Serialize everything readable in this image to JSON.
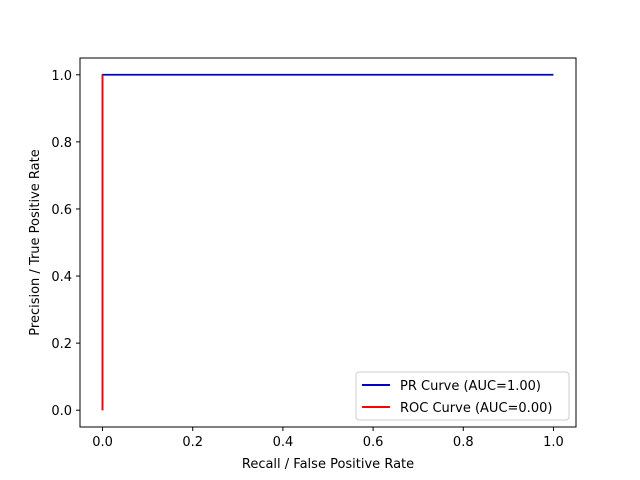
{
  "chart_data": {
    "type": "line",
    "title": "",
    "xlabel": "Recall / False Positive Rate",
    "ylabel": "Precision / True Positive Rate",
    "xlim": [
      -0.05,
      1.05
    ],
    "ylim": [
      -0.05,
      1.05
    ],
    "xticks": [
      0.0,
      0.2,
      0.4,
      0.6,
      0.8,
      1.0
    ],
    "yticks": [
      0.0,
      0.2,
      0.4,
      0.6,
      0.8,
      1.0
    ],
    "xtick_labels": [
      "0.0",
      "0.2",
      "0.4",
      "0.6",
      "0.8",
      "1.0"
    ],
    "ytick_labels": [
      "0.0",
      "0.2",
      "0.4",
      "0.6",
      "0.8",
      "1.0"
    ],
    "grid": false,
    "legend_position": "lower-right",
    "series": [
      {
        "name": "PR Curve (AUC=1.00)",
        "color": "#0000bf",
        "x": [
          0.0,
          0.0,
          1.0
        ],
        "y": [
          0.0,
          1.0,
          1.0
        ]
      },
      {
        "name": "ROC Curve (AUC=0.00)",
        "color": "#ff0000",
        "x": [
          0.0,
          0.0
        ],
        "y": [
          0.0,
          1.0
        ]
      }
    ]
  }
}
